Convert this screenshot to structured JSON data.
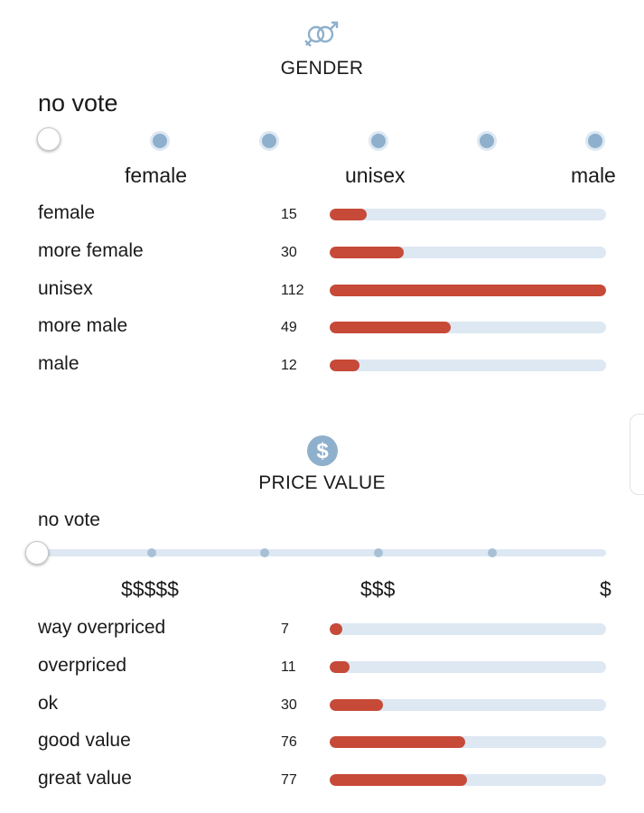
{
  "colors": {
    "bar_fill": "#c64a37",
    "track": "#dde8f3",
    "dot": "#8fb0cc"
  },
  "gender": {
    "icon": "gender-symbols-icon",
    "title": "GENDER",
    "no_vote": "no vote",
    "scale_labels": [
      "female",
      "unisex",
      "male"
    ],
    "max": 112,
    "rows": [
      {
        "label": "female",
        "count": 15
      },
      {
        "label": "more female",
        "count": 30
      },
      {
        "label": "unisex",
        "count": 112
      },
      {
        "label": "more male",
        "count": 49
      },
      {
        "label": "male",
        "count": 12
      }
    ]
  },
  "price": {
    "icon": "dollar-coin-icon",
    "title": "PRICE VALUE",
    "no_vote": "no vote",
    "scale_labels": [
      "$$$$$",
      "$$$",
      "$"
    ],
    "max": 155,
    "rows": [
      {
        "label": "way overpriced",
        "count": 7
      },
      {
        "label": "overpriced",
        "count": 11
      },
      {
        "label": "ok",
        "count": 30
      },
      {
        "label": "good value",
        "count": 76
      },
      {
        "label": "great value",
        "count": 77
      }
    ]
  }
}
